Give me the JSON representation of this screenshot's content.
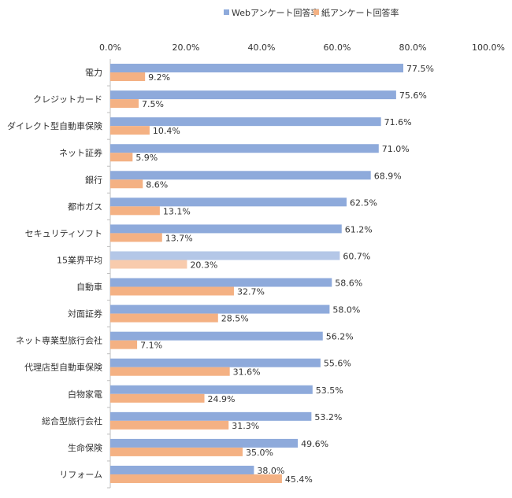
{
  "chart_data": {
    "type": "bar",
    "orientation": "horizontal",
    "title": "",
    "xlabel": "",
    "ylabel": "",
    "xlim": [
      0,
      100
    ],
    "x_ticks": [
      "0.0%",
      "20.0%",
      "40.0%",
      "60.0%",
      "80.0%",
      "100.0%"
    ],
    "legend_position": "top",
    "grid": false,
    "highlight_category": "15業界平均",
    "categories": [
      "電力",
      "クレジットカード",
      "ダイレクト型自動車保険",
      "ネット証券",
      "銀行",
      "都市ガス",
      "セキュリティソフト",
      "15業界平均",
      "自動車",
      "対面証券",
      "ネット専業型旅行会社",
      "代理店型自動車保険",
      "白物家電",
      "総合型旅行会社",
      "生命保険",
      "リフォーム"
    ],
    "series": [
      {
        "name": "Webアンケート回答率",
        "color": "#8eaadb",
        "highlight_color": "#b4c7e7",
        "values": [
          77.5,
          75.6,
          71.6,
          71.0,
          68.9,
          62.5,
          61.2,
          60.7,
          58.6,
          58.0,
          56.2,
          55.6,
          53.5,
          53.2,
          49.6,
          38.0
        ],
        "labels": [
          "77.5%",
          "75.6%",
          "71.6%",
          "71.0%",
          "68.9%",
          "62.5%",
          "61.2%",
          "60.7%",
          "58.6%",
          "58.0%",
          "56.2%",
          "55.6%",
          "53.5%",
          "53.2%",
          "49.6%",
          "38.0%"
        ]
      },
      {
        "name": "紙アンケート回答率",
        "color": "#f4b183",
        "highlight_color": "#f8cbad",
        "values": [
          9.2,
          7.5,
          10.4,
          5.9,
          8.6,
          13.1,
          13.7,
          20.3,
          32.7,
          28.5,
          7.1,
          31.6,
          24.9,
          31.3,
          35.0,
          45.4
        ],
        "labels": [
          "9.2%",
          "7.5%",
          "10.4%",
          "5.9%",
          "8.6%",
          "13.1%",
          "13.7%",
          "20.3%",
          "32.7%",
          "28.5%",
          "7.1%",
          "31.6%",
          "24.9%",
          "31.3%",
          "35.0%",
          "45.4%"
        ]
      }
    ]
  }
}
